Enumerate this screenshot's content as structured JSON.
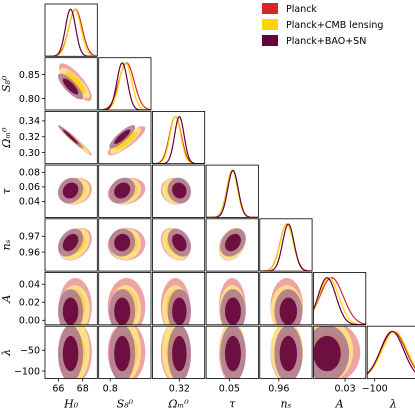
{
  "chart_data": {
    "type": "triangle",
    "parameters": [
      {
        "key": "H0",
        "label": "H₀",
        "range": [
          64.9,
          69.2
        ],
        "ticks": [
          66,
          68
        ],
        "tick_labels": [
          "66",
          "68"
        ]
      },
      {
        "key": "S8",
        "label": "S₈⁰",
        "range": [
          0.776,
          0.885
        ],
        "ticks": [
          0.8,
          0.85
        ],
        "tick_labels": [
          "0.80",
          "0.85"
        ]
      },
      {
        "key": "Om",
        "label": "Ωₘ⁰",
        "range": [
          0.286,
          0.352
        ],
        "ticks": [
          0.3,
          0.32,
          0.34
        ],
        "tick_labels": [
          "0.30",
          "0.32",
          "0.34"
        ]
      },
      {
        "key": "tau",
        "label": "τ",
        "range": [
          0.018,
          0.09
        ],
        "ticks": [
          0.04,
          0.06,
          0.08
        ],
        "tick_labels": [
          "0.04",
          "0.06",
          "0.08"
        ]
      },
      {
        "key": "ns",
        "label": "nₛ",
        "range": [
          0.948,
          0.981
        ],
        "ticks": [
          0.96,
          0.97
        ],
        "tick_labels": [
          "0.96",
          "0.97"
        ]
      },
      {
        "key": "A",
        "label": "A",
        "range": [
          -0.005,
          0.053
        ],
        "ticks": [
          0.0,
          0.02,
          0.04
        ],
        "tick_labels": [
          "0.00",
          "0.02",
          "0.04"
        ]
      },
      {
        "key": "lambda",
        "label": "λ",
        "range": [
          -118,
          8
        ],
        "ticks": [
          -100,
          -50
        ],
        "tick_labels": [
          "−100",
          "−50"
        ]
      }
    ],
    "bottom_tick_labels": {
      "H0": [
        "66",
        "68"
      ],
      "S8": [
        "0.8"
      ],
      "Om": [
        "0.32"
      ],
      "tau": [
        "0.05"
      ],
      "ns": [
        "0.96"
      ],
      "A": [
        "0.03"
      ],
      "lambda": [
        "−100"
      ]
    },
    "bottom_tick_values": {
      "H0": [
        66,
        68
      ],
      "S8": [
        0.8
      ],
      "Om": [
        0.32
      ],
      "tau": [
        0.05
      ],
      "ns": [
        0.96
      ],
      "A": [
        0.03
      ],
      "lambda": [
        -100
      ]
    },
    "series": [
      {
        "name": "Planck",
        "color": "#d62728",
        "mean": {
          "H0": 67.4,
          "S8": 0.834,
          "Om": 0.315,
          "tau": 0.054,
          "ns": 0.965,
          "A": 0.015,
          "lambda": -55
        },
        "sd": {
          "H0": 0.55,
          "S8": 0.016,
          "Om": 0.0075,
          "tau": 0.0075,
          "ns": 0.0042,
          "A": 0.013,
          "lambda": 30
        }
      },
      {
        "name": "Planck+CMB lensing",
        "color": "#ffd700",
        "mean": {
          "H0": 67.35,
          "S8": 0.832,
          "Om": 0.315,
          "tau": 0.054,
          "ns": 0.965,
          "A": 0.012,
          "lambda": -52
        },
        "sd": {
          "H0": 0.5,
          "S8": 0.013,
          "Om": 0.0068,
          "tau": 0.0073,
          "ns": 0.0041,
          "A": 0.011,
          "lambda": 30
        }
      },
      {
        "name": "Planck+BAO+SN",
        "color": "#66023c",
        "mean": {
          "H0": 67.0,
          "S8": 0.825,
          "Om": 0.32,
          "tau": 0.055,
          "ns": 0.966,
          "A": 0.01,
          "lambda": -58
        },
        "sd": {
          "H0": 0.42,
          "S8": 0.011,
          "Om": 0.006,
          "tau": 0.0072,
          "ns": 0.0036,
          "A": 0.01,
          "lambda": 28
        }
      }
    ],
    "correlations": {
      "H0|S8": -0.8,
      "H0|Om": -0.97,
      "S8|Om": 0.85,
      "H0|tau": 0.15,
      "S8|tau": 0.2,
      "Om|tau": -0.1,
      "H0|ns": 0.35,
      "S8|ns": 0.05,
      "Om|ns": -0.3,
      "tau|ns": 0.3,
      "H0|A": 0.0,
      "S8|A": 0.0,
      "Om|A": 0.0,
      "tau|A": 0.0,
      "ns|A": 0.0,
      "H0|lambda": 0.0,
      "S8|lambda": 0.0,
      "Om|lambda": 0.0,
      "tau|lambda": 0.0,
      "ns|lambda": 0.0,
      "A|lambda": 0.0
    },
    "legend_position": "top-right",
    "grid": false
  }
}
